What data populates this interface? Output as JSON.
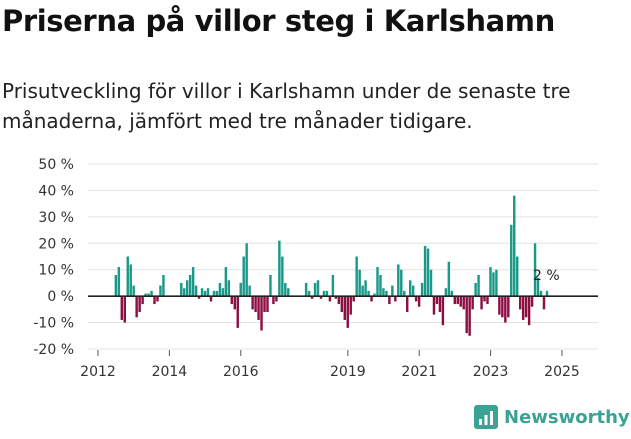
{
  "title": "Priserna på villor steg i Karlshamn",
  "subtitle": "Prisutveckling för villor i Karlshamn under de senaste tre månaderna, jämfört med tre månader tidigare.",
  "brand": "Newsworthy",
  "colors": {
    "positive": "#1a9988",
    "negative": "#8c0f44",
    "grid": "#e3e3e3",
    "axis": "#222222",
    "brand": "#3aa394"
  },
  "chart_data": {
    "type": "bar",
    "title": "Priserna på villor steg i Karlshamn",
    "xlabel": "",
    "ylabel": "",
    "ylim": [
      -20,
      50
    ],
    "yticks": [
      50,
      40,
      30,
      20,
      10,
      0,
      -10,
      -20
    ],
    "ytick_labels": [
      "50 %",
      "40 %",
      "30 %",
      "20 %",
      "10 %",
      "0 %",
      "-10 %",
      "-20 %"
    ],
    "xticks": [
      2012,
      2014,
      2016,
      2019,
      2021,
      2023,
      2025
    ],
    "xtick_labels": [
      "2012",
      "2014",
      "2016",
      "2019",
      "2021",
      "2023",
      "2025"
    ],
    "x_start": 2012.5,
    "x_step": 0.0833,
    "annotation": "2 %",
    "values": [
      8,
      11,
      -9,
      -10,
      15,
      12,
      4,
      -8,
      -6,
      -3,
      1,
      1,
      2,
      -3,
      -2,
      4,
      8,
      null,
      null,
      null,
      null,
      null,
      5,
      3,
      6,
      8,
      11,
      4,
      -1,
      3,
      2,
      3,
      -2,
      2,
      2,
      5,
      3,
      11,
      6,
      -3,
      -5,
      -12,
      5,
      15,
      20,
      4,
      -5,
      -6,
      -9,
      -13,
      -6,
      -6,
      8,
      -3,
      -2,
      21,
      15,
      5,
      3,
      null,
      null,
      null,
      null,
      null,
      5,
      2,
      -1,
      5,
      6,
      -1,
      2,
      2,
      -2,
      8,
      -1,
      -3,
      -6,
      -9,
      -12,
      -7,
      -2,
      15,
      10,
      4,
      6,
      2,
      -2,
      1,
      11,
      8,
      3,
      2,
      -3,
      4,
      -2,
      12,
      10,
      2,
      -6,
      6,
      4,
      -2,
      -4,
      5,
      19,
      18,
      10,
      -7,
      -3,
      -6,
      -11,
      3,
      13,
      2,
      -3,
      -3,
      -4,
      -5,
      -14,
      -15,
      -5,
      5,
      8,
      -5,
      -2,
      -3,
      11,
      9,
      10,
      -7,
      -8,
      -10,
      -8,
      27,
      38,
      15,
      -5,
      -9,
      -8,
      -11,
      -4,
      20,
      7,
      2,
      -5,
      2
    ]
  }
}
